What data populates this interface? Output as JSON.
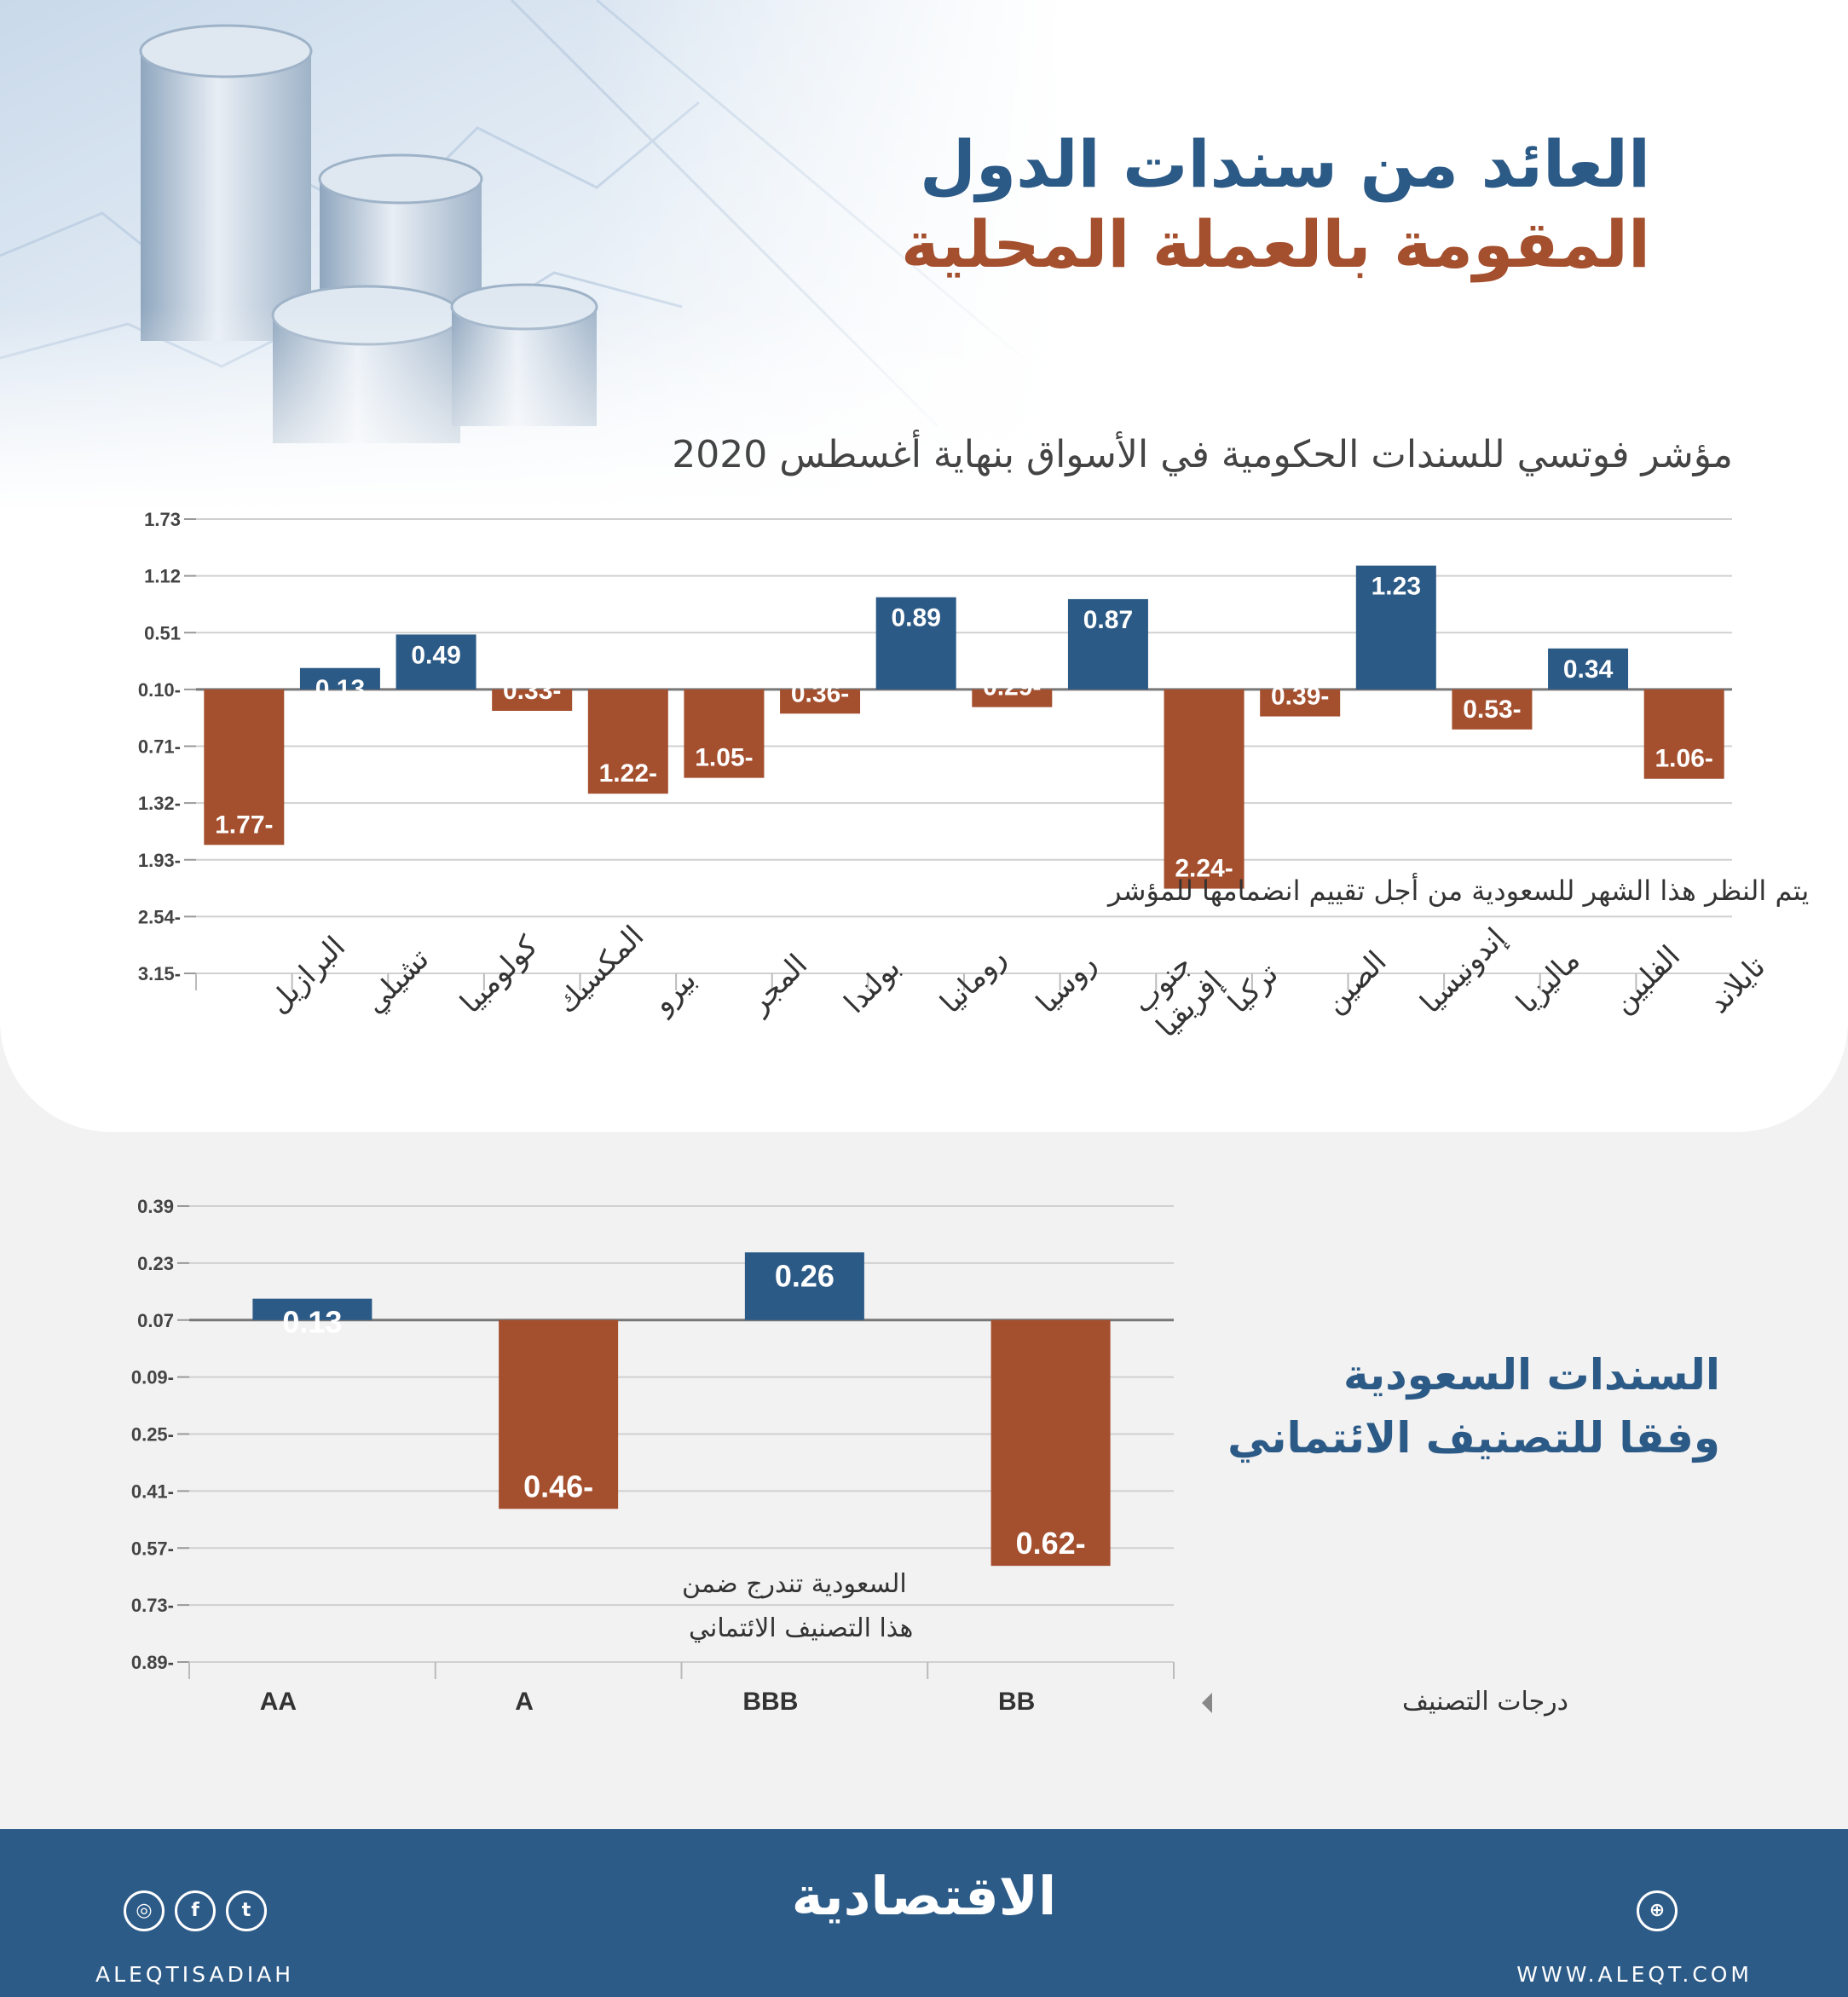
{
  "title": {
    "line1": "العائد من سندات الدول",
    "line2": "المقومة بالعملة المحلية"
  },
  "chart_top": {
    "subtitle": "مؤشر فوتسي للسندات الحكومية في الأسواق بنهاية أغسطس 2020",
    "annotation": "يتم النظر هذا الشهر للسعودية من أجل تقييم انضمامها للمؤشر"
  },
  "chart_bottom": {
    "side_title_line1": "السندات السعودية",
    "side_title_line2": "وفقا للتصنيف الائتماني",
    "annotation_line1": "السعودية تندرج ضمن",
    "annotation_line2": "هذا التصنيف الائتماني",
    "axis_caption": "درجات التصنيف"
  },
  "footer": {
    "brand": "الاقتصادية",
    "handle": "ALEQTISADIAH",
    "website": "WWW.ALEQT.COM",
    "social_icons": [
      "instagram-icon",
      "facebook-icon",
      "twitter-icon"
    ]
  },
  "colors": {
    "positive": "#2c5a86",
    "negative": "#a44f2e",
    "footer": "#2d5b88"
  },
  "chart_data": [
    {
      "type": "bar",
      "title": "مؤشر فوتسي للسندات الحكومية في الأسواق بنهاية أغسطس 2020",
      "categories": [
        "البرازيل",
        "تشيلي",
        "كولومبيا",
        "المكسيك",
        "بيرو",
        "المجر",
        "بولندا",
        "رومانيا",
        "روسيا",
        "جنوب إفريقيا",
        "تركيا",
        "الصين",
        "إندونيسيا",
        "ماليزيا",
        "الفلبين",
        "تايلاند"
      ],
      "values": [
        -1.77,
        0.13,
        0.49,
        -0.33,
        -1.22,
        -1.05,
        -0.36,
        0.89,
        -0.29,
        0.87,
        -2.24,
        -0.39,
        1.23,
        -0.53,
        0.34,
        -1.06
      ],
      "value_labels": [
        "1.77-",
        "0.13",
        "0.49",
        "0.33-",
        "1.22-",
        "1.05-",
        "0.36-",
        "0.89",
        "0.29-",
        "0.87",
        "2.24-",
        "0.39-",
        "1.23",
        "0.53-",
        "0.34",
        "1.06-"
      ],
      "yticks": [
        1.73,
        1.12,
        0.51,
        -0.1,
        -0.71,
        -1.32,
        -1.93,
        -2.54,
        -3.15
      ],
      "ytick_labels": [
        "1.73",
        "1.12",
        "0.51",
        "0.10-",
        "0.71-",
        "1.32-",
        "1.93-",
        "2.54-",
        "3.15-"
      ],
      "ylim": [
        -3.15,
        1.73
      ],
      "grid": true
    },
    {
      "type": "bar",
      "title": "السندات السعودية وفقا للتصنيف الائتماني",
      "xlabel": "درجات التصنيف",
      "categories": [
        "AA",
        "A",
        "BBB",
        "BB"
      ],
      "values": [
        0.13,
        -0.46,
        0.26,
        -0.62
      ],
      "value_labels": [
        "0.13",
        "0.46-",
        "0.26",
        "0.62-"
      ],
      "yticks": [
        0.39,
        0.23,
        0.07,
        -0.09,
        -0.25,
        -0.41,
        -0.57,
        -0.73,
        -0.89
      ],
      "ytick_labels": [
        "0.39",
        "0.23",
        "0.07",
        "0.09-",
        "0.25-",
        "0.41-",
        "0.57-",
        "0.73-",
        "0.89-"
      ],
      "ylim": [
        -0.89,
        0.39
      ],
      "grid": true
    }
  ]
}
